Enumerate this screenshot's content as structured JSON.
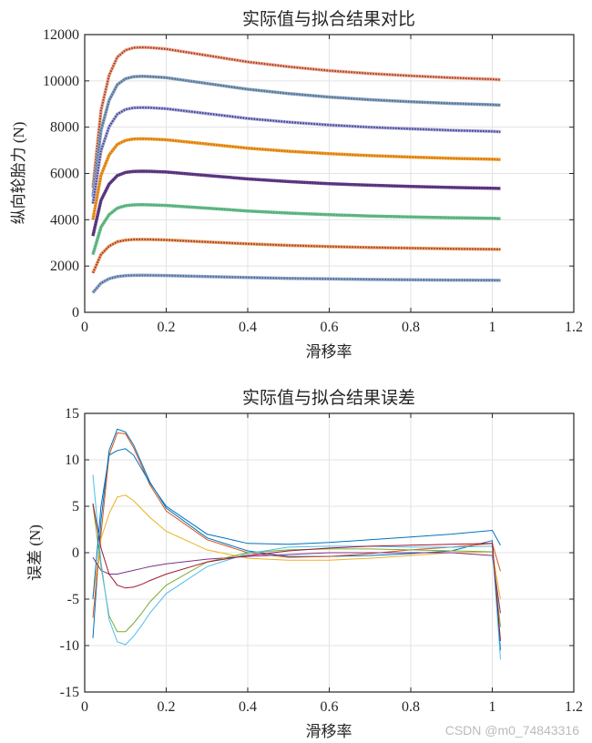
{
  "chart_data": [
    {
      "type": "line",
      "title": "实际值与拟合结果对比",
      "xlabel": "滑移率",
      "ylabel": "纵向轮胎力 (N)",
      "xlim": [
        0,
        1.2
      ],
      "ylim": [
        0,
        12000
      ],
      "xticks": [
        "0",
        "0.2",
        "0.4",
        "0.6",
        "0.8",
        "1",
        "1.2"
      ],
      "yticks": [
        "0",
        "2000",
        "4000",
        "6000",
        "8000",
        "10000",
        "12000"
      ],
      "grid": true,
      "x": [
        0.02,
        0.04,
        0.06,
        0.08,
        0.1,
        0.12,
        0.14,
        0.16,
        0.2,
        0.3,
        0.4,
        0.5,
        0.6,
        0.7,
        0.8,
        0.9,
        1.0,
        1.02
      ],
      "series": [
        {
          "color": "#f4a582",
          "dot_color": "#8b3a3a",
          "values": [
            5400,
            8728,
            10240,
            11027,
            11329,
            11432,
            11450,
            11436,
            11380,
            11100,
            10820,
            10610,
            10442,
            10316,
            10218,
            10134,
            10071,
            10050
          ]
        },
        {
          "color": "#7fa7d0",
          "dot_color": "#666666",
          "values": [
            5000,
            7860,
            9160,
            9836,
            10096,
            10184,
            10200,
            10188,
            10138,
            9888,
            9638,
            9450,
            9300,
            9188,
            9100,
            9025,
            8969,
            8950
          ]
        },
        {
          "color": "#a8a8e0",
          "dot_color": "#3c3c7a",
          "values": [
            4700,
            6983,
            8020,
            8560,
            8767,
            8838,
            8850,
            8840,
            8798,
            8588,
            8378,
            8220,
            8094,
            8000,
            7926,
            7863,
            7816,
            7800
          ]
        },
        {
          "color": "#f0a030",
          "dot_color": "#d07010",
          "values": [
            4000,
            5925,
            6800,
            7255,
            7430,
            7490,
            7500,
            7491,
            7455,
            7275,
            7095,
            6960,
            6852,
            6771,
            6708,
            6654,
            6614,
            6600
          ]
        },
        {
          "color": "#6a3d8e",
          "dot_color": "#40306a",
          "values": [
            3300,
            4840,
            5540,
            5904,
            6044,
            6092,
            6100,
            6093,
            6063,
            5913,
            5763,
            5650,
            5560,
            5493,
            5440,
            5395,
            5361,
            5350
          ]
        },
        {
          "color": "#66c08a",
          "dot_color": "#5aa07a",
          "values": [
            2500,
            3683,
            4220,
            4500,
            4607,
            4644,
            4650,
            4644,
            4620,
            4500,
            4380,
            4290,
            4218,
            4164,
            4122,
            4086,
            4059,
            4050
          ]
        },
        {
          "color": "#f4a060",
          "dot_color": "#8b3a3a",
          "values": [
            1700,
            2498,
            2860,
            3049,
            3121,
            3146,
            3150,
            3146,
            3129,
            3043,
            2957,
            2892,
            2840,
            2802,
            2772,
            2746,
            2726,
            2720
          ]
        },
        {
          "color": "#88aadd",
          "dot_color": "#666666",
          "values": [
            850,
            1263,
            1450,
            1548,
            1585,
            1598,
            1600,
            1598,
            1589,
            1545,
            1501,
            1468,
            1442,
            1422,
            1406,
            1393,
            1383,
            1380
          ]
        }
      ]
    },
    {
      "type": "line",
      "title": "实际值与拟合结果误差",
      "xlabel": "滑移率",
      "ylabel": "误差 (N)",
      "xlim": [
        0,
        1.2
      ],
      "ylim": [
        -15,
        15
      ],
      "xticks": [
        "0",
        "0.2",
        "0.4",
        "0.6",
        "0.8",
        "1",
        "1.2"
      ],
      "yticks": [
        "-15",
        "-10",
        "-5",
        "0",
        "5",
        "10",
        "15"
      ],
      "grid": true,
      "x": [
        0.02,
        0.04,
        0.06,
        0.08,
        0.1,
        0.12,
        0.14,
        0.16,
        0.2,
        0.3,
        0.4,
        0.5,
        0.6,
        0.7,
        0.8,
        0.9,
        1.0,
        1.02
      ],
      "series": [
        {
          "color": "#0072BD",
          "values": [
            -9.2,
            3.5,
            11.0,
            13.3,
            13.0,
            11.6,
            9.6,
            7.6,
            4.8,
            1.6,
            0.2,
            -0.4,
            -0.4,
            -0.3,
            -0.1,
            0.2,
            1.3,
            -10.5
          ]
        },
        {
          "color": "#D95319",
          "values": [
            -7,
            2,
            10.5,
            12.9,
            12.8,
            11.3,
            9.3,
            7.3,
            4.5,
            1.4,
            0.0,
            -0.5,
            -0.4,
            -0.1,
            0.3,
            0.6,
            1.0,
            -2.0
          ]
        },
        {
          "color": "#EDB120",
          "values": [
            -4.8,
            1.5,
            4.2,
            6.0,
            6.2,
            5.6,
            4.7,
            3.8,
            2.3,
            0.3,
            -0.6,
            -0.8,
            -0.8,
            -0.6,
            -0.3,
            0.0,
            0.1,
            -5.0
          ]
        },
        {
          "color": "#7E2F8E",
          "values": [
            -0.5,
            -1.9,
            -2.3,
            -2.3,
            -2.1,
            -1.9,
            -1.7,
            -1.5,
            -1.2,
            -0.7,
            -0.4,
            -0.2,
            0.0,
            0.0,
            0.0,
            0.0,
            -0.3,
            -6.5
          ]
        },
        {
          "color": "#77AC30",
          "values": [
            5.2,
            -1.5,
            -6.8,
            -8.5,
            -8.5,
            -7.6,
            -6.5,
            -5.3,
            -3.5,
            -1.0,
            0.0,
            0.3,
            0.4,
            0.4,
            0.3,
            0.2,
            0.1,
            -8.0
          ]
        },
        {
          "color": "#4DBEEE",
          "values": [
            8.4,
            -1.0,
            -7.2,
            -9.6,
            -9.9,
            -9.0,
            -7.8,
            -6.5,
            -4.4,
            -1.5,
            -0.1,
            0.6,
            0.7,
            0.7,
            0.6,
            0.6,
            0.7,
            -11.5
          ]
        },
        {
          "color": "#A2142F",
          "values": [
            5.3,
            0.5,
            -2.3,
            -3.5,
            -3.8,
            -3.7,
            -3.4,
            -3.0,
            -2.3,
            -1.0,
            -0.3,
            0.2,
            0.5,
            0.7,
            0.8,
            0.9,
            1.0,
            -9.5
          ]
        },
        {
          "color": "#0072BD",
          "values": [
            -5,
            5,
            10.5,
            11.0,
            11.2,
            10.5,
            9.0,
            7.5,
            5.0,
            2.0,
            1.0,
            0.9,
            1.1,
            1.4,
            1.7,
            2.0,
            2.4,
            0.8
          ]
        }
      ]
    }
  ],
  "watermark": "CSDN @m0_74843316"
}
